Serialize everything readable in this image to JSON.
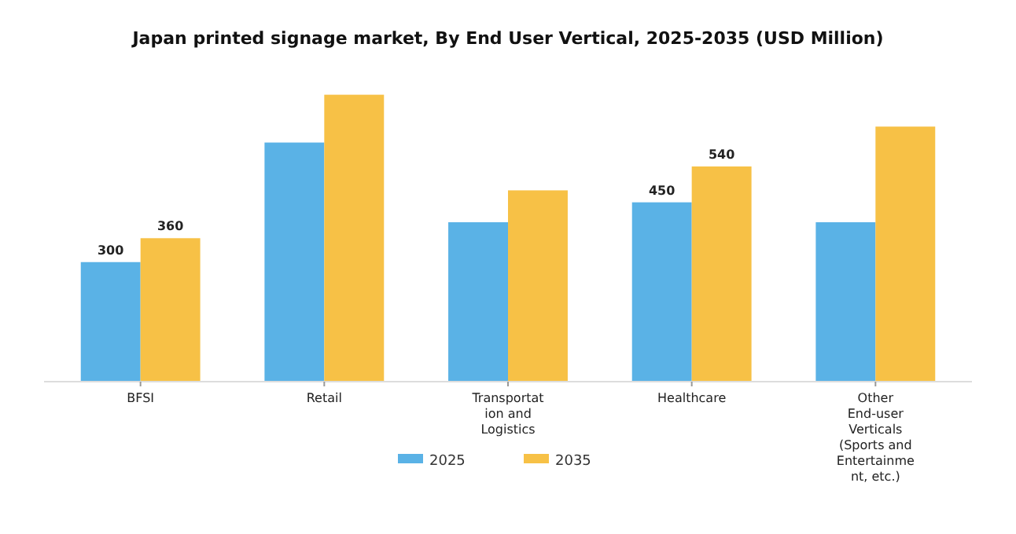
{
  "chart_data": {
    "type": "bar",
    "title": "Japan printed signage market, By End User Vertical, 2025-2035 (USD Million)",
    "categories": [
      "BFSI",
      "Retail",
      "Transportation and Logistics",
      "Healthcare",
      "Other End-user Verticals (Sports and Entertainment, etc.)"
    ],
    "series": [
      {
        "name": "2025",
        "color": "#5ab2e6",
        "values": [
          300,
          600,
          400,
          450,
          400
        ],
        "value_labels": [
          "300",
          null,
          null,
          "450",
          null
        ]
      },
      {
        "name": "2035",
        "color": "#f7c146",
        "values": [
          360,
          720,
          480,
          540,
          640
        ],
        "value_labels": [
          "360",
          null,
          null,
          "540",
          null
        ]
      }
    ],
    "tick_labels": "x",
    "legend": "bottom",
    "grid": false
  }
}
